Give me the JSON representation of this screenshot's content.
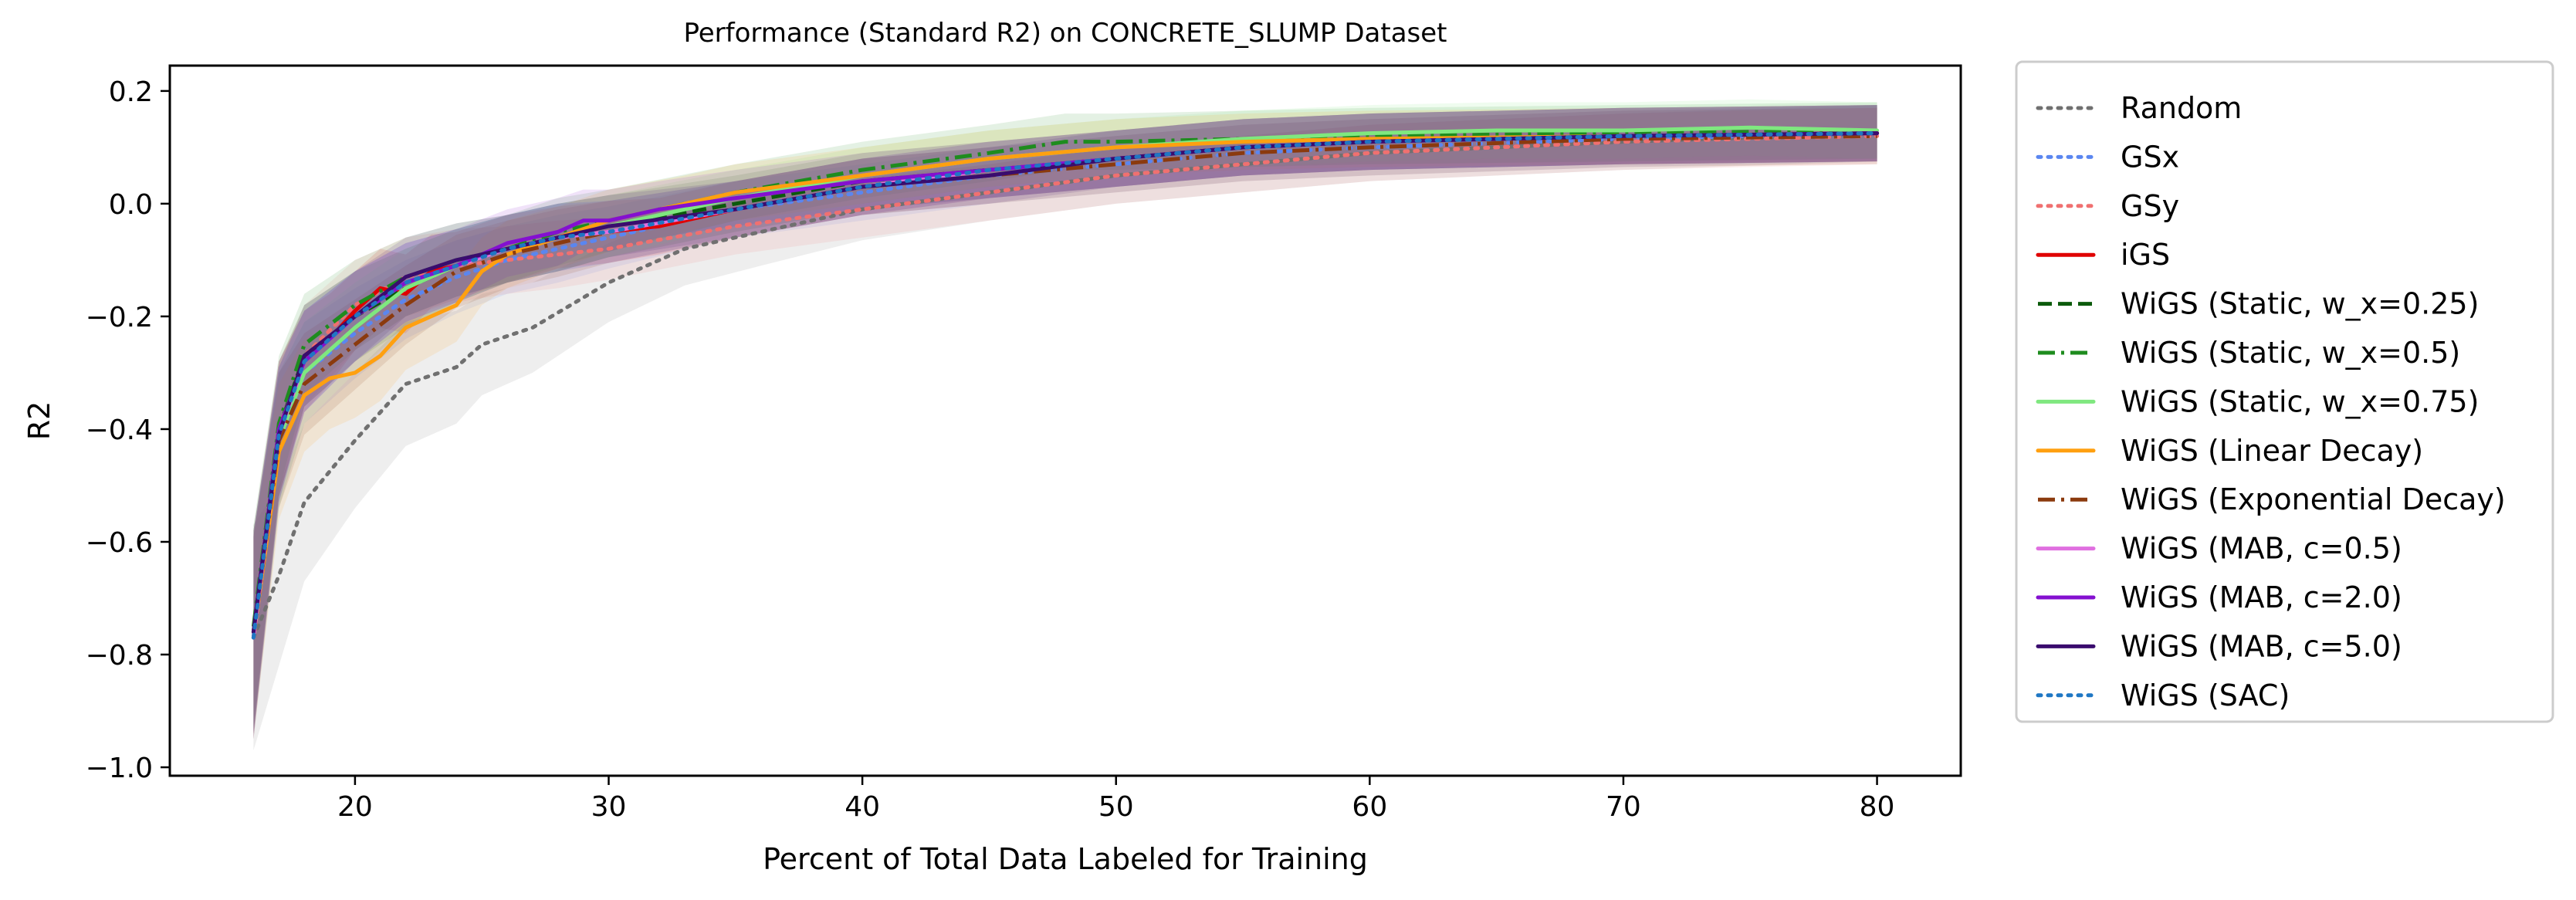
{
  "chart_data": {
    "type": "line",
    "title": "Performance (Standard R2) on CONCRETE_SLUMP Dataset",
    "xlabel": "Percent of Total Data Labeled for Training",
    "ylabel": "R2",
    "xlim": [
      12.7,
      83.3
    ],
    "ylim": [
      -1.015,
      0.245
    ],
    "xticks": [
      20,
      30,
      40,
      50,
      60,
      70,
      80
    ],
    "yticks": [
      -1.0,
      -0.8,
      -0.6,
      -0.4,
      -0.2,
      0.0,
      0.2
    ],
    "xtick_labels": [
      "20",
      "30",
      "40",
      "50",
      "60",
      "70",
      "80"
    ],
    "ytick_labels": [
      "−1.0",
      "−0.8",
      "−0.6",
      "−0.4",
      "−0.2",
      "0.0",
      "0.2"
    ],
    "grid": false,
    "legend_position": "outside-right",
    "band_opacity": 0.12,
    "series": [
      {
        "name": "Random",
        "color": "#707070",
        "dash": "dotted",
        "x": [
          16,
          17,
          18,
          20,
          22,
          24,
          25,
          27,
          30,
          33,
          36,
          40,
          45,
          50,
          55,
          60,
          70,
          80
        ],
        "y": [
          -0.77,
          -0.66,
          -0.53,
          -0.42,
          -0.32,
          -0.29,
          -0.25,
          -0.22,
          -0.14,
          -0.08,
          -0.05,
          -0.01,
          0.02,
          0.05,
          0.07,
          0.09,
          0.11,
          0.125
        ],
        "band": [
          0.2,
          0.16,
          0.14,
          0.12,
          0.11,
          0.1,
          0.09,
          0.08,
          0.07,
          0.065,
          0.06,
          0.055,
          0.05,
          0.05,
          0.05,
          0.05,
          0.05,
          0.05
        ]
      },
      {
        "name": "GSx",
        "color": "#5a86f0",
        "dash": "dotted",
        "x": [
          16,
          17,
          18,
          20,
          22,
          24,
          26,
          28,
          30,
          35,
          40,
          45,
          50,
          55,
          60,
          70,
          80
        ],
        "y": [
          -0.77,
          -0.42,
          -0.3,
          -0.23,
          -0.17,
          -0.13,
          -0.1,
          -0.08,
          -0.06,
          -0.01,
          0.02,
          0.05,
          0.07,
          0.09,
          0.1,
          0.115,
          0.125
        ],
        "band": [
          0.18,
          0.12,
          0.09,
          0.08,
          0.07,
          0.065,
          0.06,
          0.06,
          0.055,
          0.05,
          0.05,
          0.05,
          0.05,
          0.05,
          0.05,
          0.05,
          0.05
        ]
      },
      {
        "name": "GSy",
        "color": "#f07070",
        "dash": "dotted",
        "x": [
          16,
          17,
          18,
          20,
          22,
          24,
          26,
          28,
          30,
          35,
          40,
          45,
          50,
          55,
          60,
          70,
          80
        ],
        "y": [
          -0.77,
          -0.4,
          -0.27,
          -0.18,
          -0.13,
          -0.11,
          -0.1,
          -0.09,
          -0.08,
          -0.04,
          -0.01,
          0.02,
          0.05,
          0.07,
          0.09,
          0.11,
          0.12
        ],
        "band": [
          0.18,
          0.12,
          0.09,
          0.08,
          0.07,
          0.065,
          0.06,
          0.06,
          0.055,
          0.05,
          0.05,
          0.05,
          0.05,
          0.05,
          0.05,
          0.05,
          0.05
        ]
      },
      {
        "name": "iGS",
        "color": "#e00000",
        "dash": "solid",
        "x": [
          16,
          17,
          18,
          19,
          20,
          21,
          22,
          23,
          24,
          26,
          28,
          30,
          32,
          35,
          40,
          45,
          50,
          55,
          60,
          70,
          80
        ],
        "y": [
          -0.76,
          -0.4,
          -0.28,
          -0.24,
          -0.19,
          -0.15,
          -0.16,
          -0.12,
          -0.11,
          -0.08,
          -0.06,
          -0.05,
          -0.04,
          -0.01,
          0.03,
          0.06,
          0.08,
          0.1,
          0.11,
          0.12,
          0.125
        ],
        "band": [
          0.18,
          0.12,
          0.09,
          0.08,
          0.07,
          0.07,
          0.07,
          0.065,
          0.06,
          0.06,
          0.055,
          0.055,
          0.05,
          0.05,
          0.05,
          0.05,
          0.05,
          0.05,
          0.05,
          0.05,
          0.05
        ]
      },
      {
        "name": "WiGS (Static, w_x=0.25)",
        "color": "#0b5a0b",
        "dash": "dashed",
        "x": [
          16,
          17,
          18,
          20,
          22,
          24,
          26,
          28,
          30,
          35,
          40,
          45,
          50,
          55,
          60,
          70,
          80
        ],
        "y": [
          -0.76,
          -0.4,
          -0.27,
          -0.2,
          -0.15,
          -0.11,
          -0.08,
          -0.06,
          -0.04,
          0.0,
          0.04,
          0.06,
          0.08,
          0.1,
          0.11,
          0.12,
          0.125
        ],
        "band": [
          0.18,
          0.12,
          0.09,
          0.08,
          0.07,
          0.065,
          0.06,
          0.06,
          0.055,
          0.05,
          0.05,
          0.05,
          0.05,
          0.05,
          0.05,
          0.05,
          0.05
        ]
      },
      {
        "name": "WiGS (Static, w_x=0.5)",
        "color": "#1e8c1e",
        "dash": "dashdot",
        "x": [
          16,
          17,
          18,
          20,
          22,
          24,
          26,
          28,
          30,
          35,
          40,
          45,
          48,
          50,
          55,
          60,
          70,
          80
        ],
        "y": [
          -0.75,
          -0.39,
          -0.25,
          -0.18,
          -0.13,
          -0.1,
          -0.08,
          -0.05,
          -0.03,
          0.02,
          0.06,
          0.09,
          0.11,
          0.11,
          0.115,
          0.12,
          0.125,
          0.13
        ],
        "band": [
          0.18,
          0.12,
          0.09,
          0.08,
          0.07,
          0.065,
          0.06,
          0.06,
          0.055,
          0.05,
          0.05,
          0.05,
          0.05,
          0.05,
          0.05,
          0.05,
          0.05,
          0.05
        ]
      },
      {
        "name": "WiGS (Static, w_x=0.75)",
        "color": "#7fe87f",
        "dash": "solid",
        "x": [
          16,
          17,
          18,
          20,
          22,
          24,
          26,
          28,
          30,
          35,
          40,
          45,
          50,
          55,
          60,
          65,
          70,
          75,
          80
        ],
        "y": [
          -0.76,
          -0.42,
          -0.3,
          -0.22,
          -0.15,
          -0.11,
          -0.08,
          -0.06,
          -0.04,
          0.01,
          0.05,
          0.08,
          0.1,
          0.115,
          0.125,
          0.13,
          0.13,
          0.135,
          0.13
        ],
        "band": [
          0.18,
          0.12,
          0.09,
          0.08,
          0.07,
          0.065,
          0.06,
          0.06,
          0.055,
          0.05,
          0.05,
          0.05,
          0.05,
          0.05,
          0.05,
          0.05,
          0.05,
          0.05,
          0.05
        ]
      },
      {
        "name": "WiGS (Linear Decay)",
        "color": "#ffa010",
        "dash": "solid",
        "x": [
          16,
          17,
          18,
          19,
          20,
          21,
          22,
          23,
          24,
          25,
          26,
          28,
          30,
          33,
          35,
          40,
          45,
          50,
          55,
          60,
          70,
          80
        ],
        "y": [
          -0.77,
          -0.44,
          -0.34,
          -0.31,
          -0.3,
          -0.27,
          -0.22,
          -0.2,
          -0.18,
          -0.12,
          -0.09,
          -0.06,
          -0.03,
          0.0,
          0.02,
          0.05,
          0.08,
          0.1,
          0.11,
          0.115,
          0.12,
          0.125
        ],
        "band": [
          0.18,
          0.12,
          0.1,
          0.09,
          0.08,
          0.08,
          0.075,
          0.07,
          0.065,
          0.06,
          0.06,
          0.055,
          0.055,
          0.05,
          0.05,
          0.05,
          0.05,
          0.05,
          0.05,
          0.05,
          0.05,
          0.05
        ]
      },
      {
        "name": "WiGS (Exponential Decay)",
        "color": "#8b3a0e",
        "dash": "dashdot",
        "x": [
          16,
          17,
          18,
          20,
          22,
          24,
          26,
          28,
          30,
          35,
          40,
          45,
          50,
          55,
          60,
          70,
          80
        ],
        "y": [
          -0.77,
          -0.42,
          -0.32,
          -0.25,
          -0.18,
          -0.12,
          -0.09,
          -0.07,
          -0.05,
          -0.01,
          0.03,
          0.05,
          0.07,
          0.09,
          0.1,
          0.115,
          0.12
        ],
        "band": [
          0.18,
          0.12,
          0.09,
          0.08,
          0.07,
          0.065,
          0.06,
          0.06,
          0.055,
          0.05,
          0.05,
          0.05,
          0.05,
          0.05,
          0.05,
          0.05,
          0.05
        ]
      },
      {
        "name": "WiGS (MAB, c=0.5)",
        "color": "#e070e0",
        "dash": "solid",
        "x": [
          16,
          17,
          18,
          20,
          22,
          24,
          26,
          28,
          30,
          35,
          40,
          45,
          50,
          55,
          60,
          70,
          80
        ],
        "y": [
          -0.77,
          -0.41,
          -0.28,
          -0.2,
          -0.14,
          -0.11,
          -0.08,
          -0.06,
          -0.05,
          -0.01,
          0.03,
          0.06,
          0.08,
          0.1,
          0.11,
          0.12,
          0.125
        ],
        "band": [
          0.18,
          0.12,
          0.09,
          0.08,
          0.07,
          0.065,
          0.06,
          0.06,
          0.055,
          0.05,
          0.05,
          0.05,
          0.05,
          0.05,
          0.05,
          0.05,
          0.05
        ]
      },
      {
        "name": "WiGS (MAB, c=2.0)",
        "color": "#8410d0",
        "dash": "solid",
        "x": [
          16,
          17,
          18,
          20,
          22,
          24,
          26,
          27,
          28,
          29,
          30,
          32,
          35,
          40,
          45,
          50,
          55,
          60,
          70,
          80
        ],
        "y": [
          -0.76,
          -0.4,
          -0.28,
          -0.2,
          -0.14,
          -0.11,
          -0.07,
          -0.06,
          -0.05,
          -0.03,
          -0.03,
          -0.01,
          0.01,
          0.04,
          0.06,
          0.08,
          0.1,
          0.11,
          0.12,
          0.125
        ],
        "band": [
          0.18,
          0.12,
          0.09,
          0.08,
          0.07,
          0.065,
          0.06,
          0.06,
          0.06,
          0.055,
          0.055,
          0.05,
          0.05,
          0.05,
          0.05,
          0.05,
          0.05,
          0.05,
          0.05,
          0.05
        ]
      },
      {
        "name": "WiGS (MAB, c=5.0)",
        "color": "#3a0c6e",
        "dash": "solid",
        "x": [
          16,
          17,
          18,
          20,
          22,
          24,
          26,
          28,
          30,
          35,
          40,
          45,
          50,
          55,
          60,
          70,
          80
        ],
        "y": [
          -0.76,
          -0.41,
          -0.27,
          -0.2,
          -0.13,
          -0.1,
          -0.08,
          -0.06,
          -0.04,
          -0.01,
          0.03,
          0.05,
          0.08,
          0.1,
          0.11,
          0.12,
          0.125
        ],
        "band": [
          0.18,
          0.12,
          0.09,
          0.08,
          0.07,
          0.065,
          0.06,
          0.06,
          0.055,
          0.05,
          0.05,
          0.05,
          0.05,
          0.05,
          0.05,
          0.05,
          0.05
        ]
      },
      {
        "name": "WiGS (SAC)",
        "color": "#1f77c4",
        "dash": "dotted",
        "x": [
          16,
          17,
          18,
          20,
          22,
          24,
          26,
          28,
          30,
          35,
          40,
          45,
          50,
          55,
          60,
          70,
          80
        ],
        "y": [
          -0.77,
          -0.41,
          -0.28,
          -0.2,
          -0.14,
          -0.11,
          -0.08,
          -0.06,
          -0.05,
          -0.01,
          0.03,
          0.06,
          0.08,
          0.1,
          0.11,
          0.12,
          0.125
        ],
        "band": [
          0.18,
          0.12,
          0.09,
          0.08,
          0.07,
          0.065,
          0.06,
          0.06,
          0.055,
          0.05,
          0.05,
          0.05,
          0.05,
          0.05,
          0.05,
          0.05,
          0.05
        ]
      }
    ]
  }
}
